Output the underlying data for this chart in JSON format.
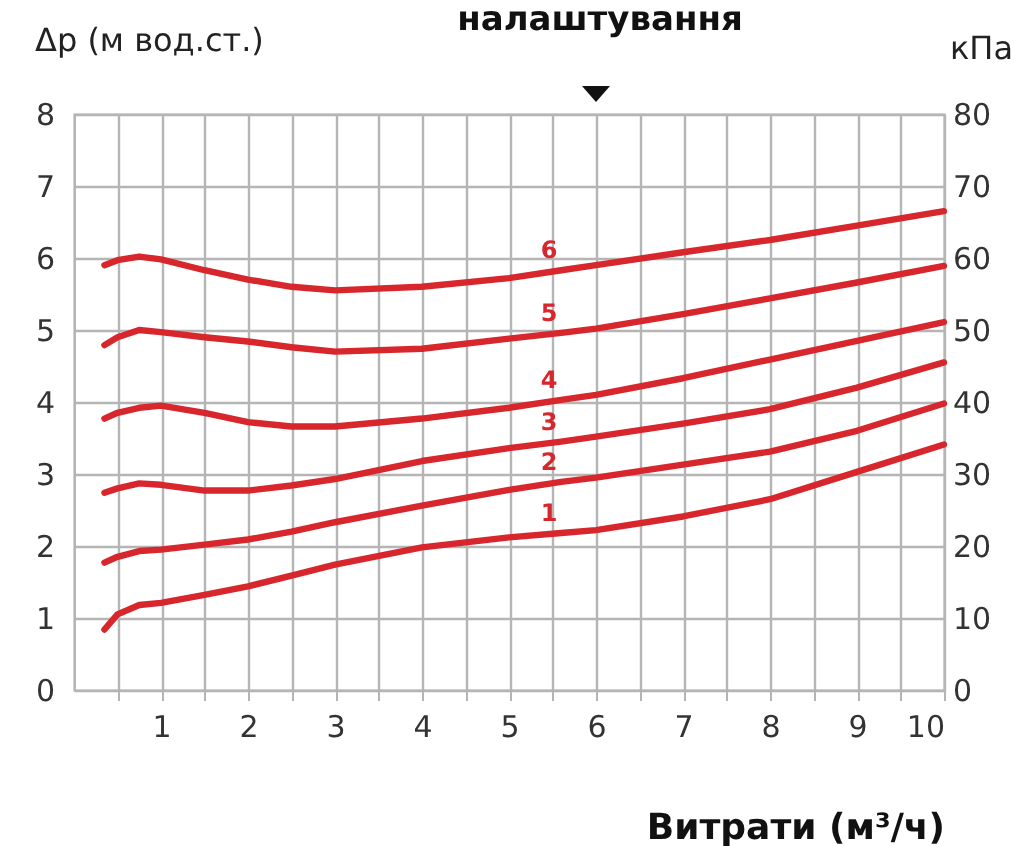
{
  "chart_data": {
    "type": "line",
    "title": "налаштування",
    "xlabel": "Витрати (м³/ч)",
    "ylabel": "Δp (м вод.ст.)",
    "y2label": "кПа",
    "x": [
      0.35,
      0.5,
      0.75,
      1,
      1.5,
      2,
      2.5,
      3,
      4,
      5,
      5.6,
      6,
      7,
      8,
      9,
      10
    ],
    "series": [
      {
        "name": "6",
        "color": "#d7262c",
        "values": [
          5.9,
          5.97,
          6.02,
          5.98,
          5.83,
          5.7,
          5.6,
          5.55,
          5.6,
          5.72,
          5.83,
          5.9,
          6.08,
          6.25,
          6.45,
          6.65
        ]
      },
      {
        "name": "5",
        "color": "#d7262c",
        "values": [
          4.79,
          4.9,
          5.0,
          4.97,
          4.9,
          4.84,
          4.76,
          4.7,
          4.74,
          4.88,
          4.96,
          5.02,
          5.22,
          5.44,
          5.66,
          5.89
        ]
      },
      {
        "name": "4",
        "color": "#d7262c",
        "values": [
          3.77,
          3.85,
          3.92,
          3.95,
          3.85,
          3.72,
          3.66,
          3.66,
          3.77,
          3.92,
          4.03,
          4.1,
          4.33,
          4.59,
          4.85,
          5.11
        ]
      },
      {
        "name": "3",
        "color": "#d7262c",
        "values": [
          2.74,
          2.8,
          2.87,
          2.85,
          2.77,
          2.77,
          2.84,
          2.93,
          3.18,
          3.36,
          3.45,
          3.52,
          3.7,
          3.9,
          4.2,
          4.55
        ]
      },
      {
        "name": "2",
        "color": "#d7262c",
        "values": [
          1.77,
          1.85,
          1.93,
          1.95,
          2.02,
          2.09,
          2.2,
          2.33,
          2.56,
          2.78,
          2.89,
          2.95,
          3.13,
          3.31,
          3.6,
          3.98
        ]
      },
      {
        "name": "1",
        "color": "#d7262c",
        "values": [
          0.84,
          1.05,
          1.18,
          1.21,
          1.32,
          1.44,
          1.59,
          1.74,
          1.98,
          2.12,
          2.18,
          2.22,
          2.41,
          2.65,
          3.03,
          3.41
        ]
      }
    ],
    "xlim": [
      0,
      10
    ],
    "xticks": [
      {
        "value": 0.5,
        "label": null
      },
      1,
      {
        "value": 1.5,
        "label": null
      },
      2,
      {
        "value": 2.5,
        "label": null
      },
      3,
      {
        "value": 3.5,
        "label": null
      },
      4,
      {
        "value": 4.5,
        "label": null
      },
      5,
      {
        "value": 5.5,
        "label": null
      },
      6,
      {
        "value": 6.5,
        "label": null
      },
      7,
      {
        "value": 7.5,
        "label": null
      },
      8,
      {
        "value": 8.5,
        "label": null
      },
      9,
      {
        "value": 9.5,
        "label": null
      },
      10
    ],
    "ylim": [
      0,
      8
    ],
    "yticks": [
      0,
      1,
      2,
      3,
      4,
      5,
      6,
      7,
      8
    ],
    "y2lim": [
      0,
      80
    ],
    "y2ticks": [
      0,
      10,
      20,
      30,
      40,
      50,
      60,
      70,
      80
    ],
    "grid": true,
    "legend": false,
    "marker": "none",
    "line_style": "solid"
  }
}
